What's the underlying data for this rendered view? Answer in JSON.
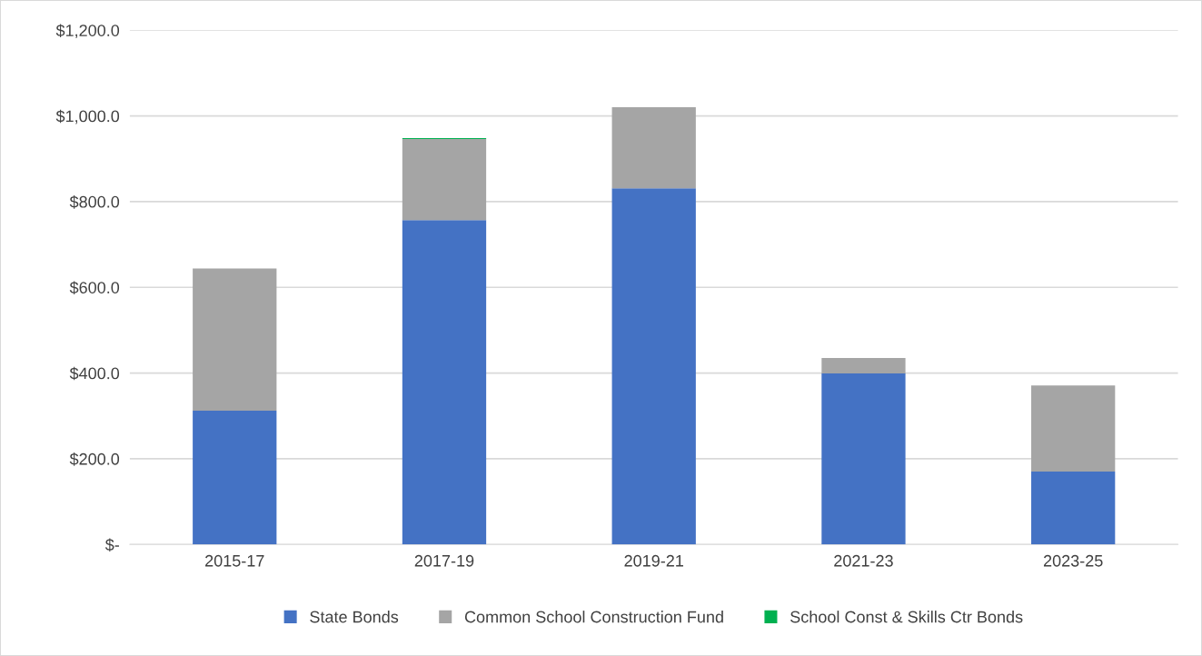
{
  "chart_data": {
    "type": "bar",
    "stacked": true,
    "categories": [
      "2015-17",
      "2017-19",
      "2019-21",
      "2021-23",
      "2023-25"
    ],
    "series": [
      {
        "name": "State Bonds",
        "color": "#4472c4",
        "values": [
          312,
          757,
          831,
          399,
          170
        ]
      },
      {
        "name": "Common School Construction Fund",
        "color": "#a5a5a5",
        "values": [
          332,
          189,
          189,
          36,
          201
        ]
      },
      {
        "name": "School Const & Skills Ctr Bonds",
        "color": "#00b050",
        "values": [
          0,
          2,
          0,
          0,
          0
        ]
      }
    ],
    "ylim": [
      0,
      1200
    ],
    "yticks": [
      {
        "value": 0,
        "label": "$-"
      },
      {
        "value": 200,
        "label": "$200.0"
      },
      {
        "value": 400,
        "label": "$400.0"
      },
      {
        "value": 600,
        "label": "$600.0"
      },
      {
        "value": 800,
        "label": "$800.0"
      },
      {
        "value": 1000,
        "label": "$1,000.0"
      },
      {
        "value": 1200,
        "label": "$1,200.0"
      }
    ],
    "grid": "y",
    "legend": "bottom"
  }
}
